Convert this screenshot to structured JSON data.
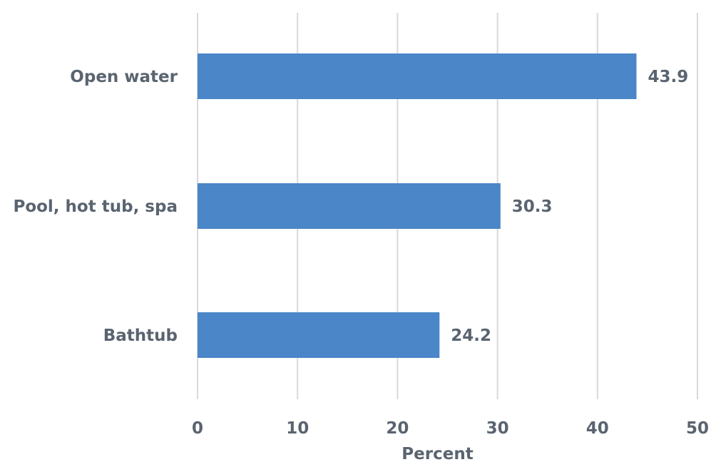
{
  "chart_data": {
    "type": "bar",
    "orientation": "horizontal",
    "categories": [
      "Open water",
      "Pool, hot tub, spa",
      "Bathtub"
    ],
    "values": [
      43.9,
      30.3,
      24.2
    ],
    "data_labels": [
      "43.9",
      "30.3",
      "24.2"
    ],
    "xlabel": "Percent",
    "xlim": [
      0,
      50
    ],
    "xticks": [
      0,
      10,
      20,
      30,
      40,
      50
    ],
    "xtick_labels": [
      "0",
      "10",
      "20",
      "30",
      "40",
      "50"
    ],
    "grid": "vertical",
    "legend": "none",
    "colors": {
      "bar": "#4a86c8",
      "text": "#5a6470",
      "grid": "#d9d9d9"
    }
  }
}
